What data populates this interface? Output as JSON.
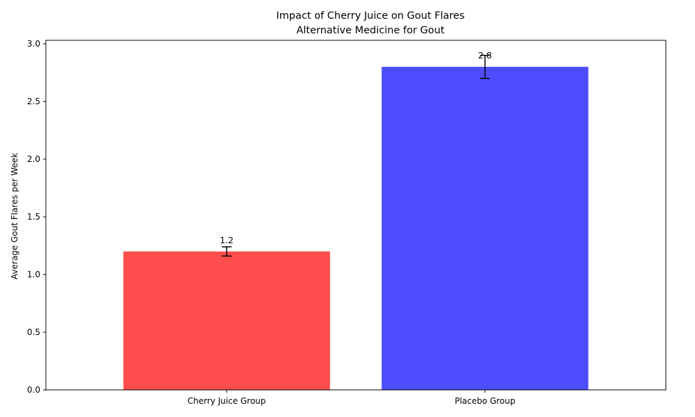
{
  "chart_data": {
    "type": "bar",
    "title": "Impact of Cherry Juice on Gout Flares",
    "subtitle": "Alternative Medicine for Gout",
    "xlabel": "",
    "ylabel": "Average Gout Flares per Week",
    "categories": [
      "Cherry Juice Group",
      "Placebo Group"
    ],
    "values": [
      1.2,
      2.8
    ],
    "errors": [
      0.04,
      0.1
    ],
    "data_labels": [
      "1.2",
      "2.8"
    ],
    "colors": [
      "#ff4d4d",
      "#4d4dff"
    ],
    "ylim": [
      0,
      3.03
    ],
    "yticks": [
      0.0,
      0.5,
      1.0,
      1.5,
      2.0,
      2.5,
      3.0
    ],
    "ytick_labels": [
      "0.0",
      "0.5",
      "1.0",
      "1.5",
      "2.0",
      "2.5",
      "3.0"
    ],
    "grid": false,
    "legend": "none"
  }
}
